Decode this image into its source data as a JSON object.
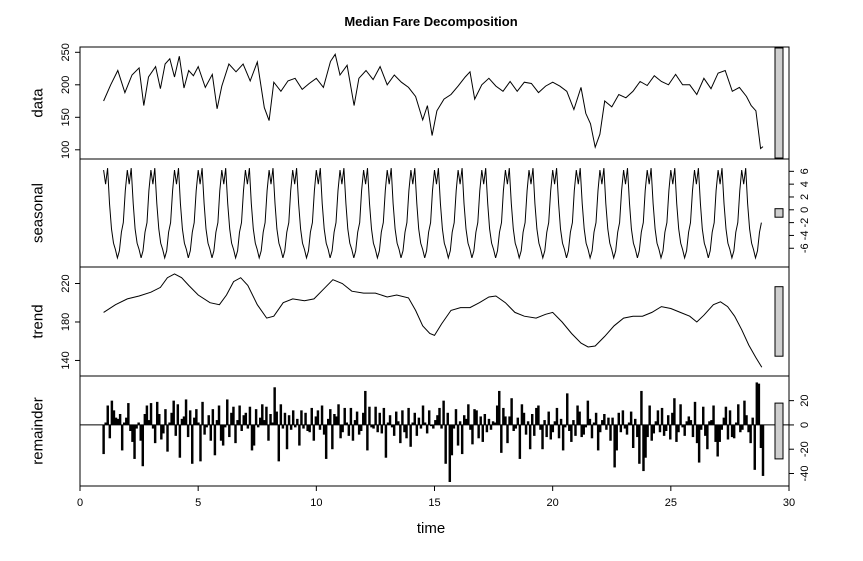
{
  "chart_data": {
    "type": "line",
    "title": "Median Fare Decomposition",
    "xlabel": "time",
    "xlim": [
      0,
      30
    ],
    "x_ticks": [
      0,
      5,
      10,
      15,
      20,
      25,
      30
    ],
    "x_tick_labels": [
      "0",
      "5",
      "10",
      "15",
      "20",
      "25",
      "30"
    ],
    "x_start": 1,
    "x_end": 28.9,
    "frequency": 12,
    "panels": [
      {
        "name": "data",
        "label": "data",
        "style": "line",
        "ylim": [
          92,
          252
        ],
        "y_ticks": [
          100,
          150,
          200,
          250
        ],
        "y_tick_labels": [
          "100",
          "150",
          "200",
          "250"
        ],
        "y_axis_side": "left",
        "range_bar_side": "right",
        "points": [
          [
            1,
            175
          ],
          [
            1.3,
            200
          ],
          [
            1.6,
            222
          ],
          [
            1.9,
            188
          ],
          [
            2.2,
            215
          ],
          [
            2.5,
            226
          ],
          [
            2.7,
            168
          ],
          [
            2.9,
            212
          ],
          [
            3.2,
            228
          ],
          [
            3.4,
            194
          ],
          [
            3.6,
            232
          ],
          [
            3.8,
            240
          ],
          [
            4.0,
            212
          ],
          [
            4.2,
            244
          ],
          [
            4.4,
            195
          ],
          [
            4.6,
            222
          ],
          [
            4.8,
            214
          ],
          [
            5.0,
            228
          ],
          [
            5.3,
            196
          ],
          [
            5.6,
            216
          ],
          [
            5.8,
            163
          ],
          [
            6.0,
            198
          ],
          [
            6.3,
            232
          ],
          [
            6.6,
            220
          ],
          [
            6.9,
            232
          ],
          [
            7.2,
            206
          ],
          [
            7.5,
            235
          ],
          [
            7.8,
            165
          ],
          [
            8.0,
            145
          ],
          [
            8.2,
            204
          ],
          [
            8.5,
            190
          ],
          [
            8.8,
            206
          ],
          [
            9.1,
            210
          ],
          [
            9.4,
            193
          ],
          [
            9.7,
            202
          ],
          [
            10.0,
            210
          ],
          [
            10.3,
            196
          ],
          [
            10.6,
            236
          ],
          [
            10.8,
            247
          ],
          [
            11.0,
            215
          ],
          [
            11.3,
            230
          ],
          [
            11.6,
            168
          ],
          [
            11.8,
            210
          ],
          [
            12.1,
            222
          ],
          [
            12.4,
            208
          ],
          [
            12.7,
            228
          ],
          [
            13.0,
            200
          ],
          [
            13.3,
            215
          ],
          [
            13.6,
            204
          ],
          [
            13.9,
            196
          ],
          [
            14.2,
            182
          ],
          [
            14.5,
            146
          ],
          [
            14.7,
            168
          ],
          [
            14.9,
            122
          ],
          [
            15.1,
            160
          ],
          [
            15.4,
            178
          ],
          [
            15.7,
            185
          ],
          [
            16.0,
            198
          ],
          [
            16.3,
            212
          ],
          [
            16.5,
            220
          ],
          [
            16.7,
            178
          ],
          [
            17.0,
            200
          ],
          [
            17.3,
            210
          ],
          [
            17.6,
            198
          ],
          [
            17.9,
            190
          ],
          [
            18.2,
            205
          ],
          [
            18.5,
            190
          ],
          [
            18.8,
            204
          ],
          [
            19.1,
            202
          ],
          [
            19.4,
            188
          ],
          [
            19.7,
            198
          ],
          [
            20.0,
            204
          ],
          [
            20.3,
            198
          ],
          [
            20.6,
            190
          ],
          [
            20.9,
            162
          ],
          [
            21.2,
            196
          ],
          [
            21.4,
            156
          ],
          [
            21.6,
            140
          ],
          [
            21.8,
            104
          ],
          [
            22.0,
            124
          ],
          [
            22.2,
            175
          ],
          [
            22.5,
            166
          ],
          [
            22.8,
            185
          ],
          [
            23.1,
            180
          ],
          [
            23.4,
            190
          ],
          [
            23.7,
            205
          ],
          [
            24.0,
            199
          ],
          [
            24.3,
            214
          ],
          [
            24.6,
            205
          ],
          [
            24.9,
            200
          ],
          [
            25.2,
            216
          ],
          [
            25.5,
            200
          ],
          [
            25.8,
            200
          ],
          [
            26.1,
            185
          ],
          [
            26.4,
            210
          ],
          [
            26.7,
            194
          ],
          [
            27.0,
            218
          ],
          [
            27.3,
            222
          ],
          [
            27.6,
            190
          ],
          [
            27.9,
            196
          ],
          [
            28.2,
            182
          ],
          [
            28.4,
            168
          ],
          [
            28.6,
            160
          ],
          [
            28.8,
            102
          ],
          [
            28.9,
            105
          ]
        ]
      },
      {
        "name": "seasonal",
        "label": "seasonal",
        "style": "line",
        "ylim": [
          -8.3,
          7.3
        ],
        "y_ticks": [
          -6,
          -4,
          -2,
          0,
          2,
          4,
          6
        ],
        "y_tick_labels": [
          "-6",
          "-4",
          "-2",
          "0",
          "2",
          "4",
          "6"
        ],
        "y_axis_side": "right",
        "range_bar_side": "right",
        "cycle_values": [
          6.2,
          4.0,
          6.5,
          1.0,
          -3.0,
          -5.2,
          -6.2,
          -7.5,
          -6.4,
          -3.5,
          -2.0,
          3.0
        ]
      },
      {
        "name": "trend",
        "label": "trend",
        "style": "line",
        "ylim": [
          128,
          233
        ],
        "y_ticks": [
          140,
          180,
          220
        ],
        "y_tick_labels": [
          "140",
          "180",
          "220"
        ],
        "y_axis_side": "left",
        "range_bar_side": "right",
        "points": [
          [
            1,
            190
          ],
          [
            1.5,
            198
          ],
          [
            2,
            204
          ],
          [
            2.5,
            207
          ],
          [
            3,
            211
          ],
          [
            3.4,
            216
          ],
          [
            3.7,
            226
          ],
          [
            4.0,
            230
          ],
          [
            4.3,
            226
          ],
          [
            4.6,
            218
          ],
          [
            5,
            208
          ],
          [
            5.5,
            200
          ],
          [
            5.9,
            198
          ],
          [
            6.2,
            208
          ],
          [
            6.5,
            222
          ],
          [
            6.8,
            226
          ],
          [
            7.1,
            218
          ],
          [
            7.5,
            198
          ],
          [
            7.9,
            184
          ],
          [
            8.2,
            186
          ],
          [
            8.6,
            200
          ],
          [
            9.0,
            204
          ],
          [
            9.5,
            202
          ],
          [
            9.9,
            204
          ],
          [
            10.3,
            214
          ],
          [
            10.7,
            224
          ],
          [
            11.1,
            220
          ],
          [
            11.5,
            212
          ],
          [
            12.0,
            210
          ],
          [
            12.5,
            210
          ],
          [
            13.0,
            206
          ],
          [
            13.4,
            208
          ],
          [
            13.9,
            205
          ],
          [
            14.2,
            192
          ],
          [
            14.5,
            176
          ],
          [
            14.8,
            168
          ],
          [
            15.0,
            166
          ],
          [
            15.3,
            178
          ],
          [
            15.7,
            192
          ],
          [
            16.1,
            195
          ],
          [
            16.5,
            195
          ],
          [
            16.9,
            200
          ],
          [
            17.3,
            206
          ],
          [
            17.6,
            207
          ],
          [
            18.0,
            200
          ],
          [
            18.4,
            190
          ],
          [
            18.8,
            186
          ],
          [
            19.3,
            184
          ],
          [
            19.7,
            188
          ],
          [
            20.0,
            190
          ],
          [
            20.4,
            180
          ],
          [
            20.8,
            168
          ],
          [
            21.2,
            158
          ],
          [
            21.5,
            154
          ],
          [
            21.8,
            155
          ],
          [
            22.2,
            165
          ],
          [
            22.6,
            176
          ],
          [
            23.0,
            184
          ],
          [
            23.4,
            186
          ],
          [
            23.8,
            186
          ],
          [
            24.2,
            190
          ],
          [
            24.6,
            196
          ],
          [
            25.0,
            194
          ],
          [
            25.4,
            190
          ],
          [
            25.8,
            186
          ],
          [
            26.1,
            180
          ],
          [
            26.4,
            187
          ],
          [
            26.8,
            198
          ],
          [
            27.1,
            201
          ],
          [
            27.4,
            196
          ],
          [
            27.7,
            186
          ],
          [
            28.0,
            172
          ],
          [
            28.3,
            156
          ],
          [
            28.6,
            143
          ],
          [
            28.85,
            133
          ]
        ]
      },
      {
        "name": "remainder",
        "label": "remainder",
        "style": "bars",
        "ylim": [
          -47,
          37
        ],
        "y_ticks": [
          -40,
          -20,
          0,
          20
        ],
        "y_tick_labels": [
          "-40",
          "-20",
          "0",
          "20"
        ],
        "y_axis_side": "right",
        "range_bar_side": "right",
        "baseline": 0,
        "values": [
          -24,
          2,
          16,
          -11,
          20,
          12,
          6,
          5,
          9,
          -21,
          2,
          6,
          18,
          -5,
          -14,
          -28,
          -3,
          2,
          -13,
          -34,
          9,
          16,
          4,
          18,
          -3,
          -15,
          19,
          9,
          -12,
          -7,
          13,
          -22,
          2,
          10,
          20,
          -9,
          17,
          -27,
          5,
          7,
          21,
          -10,
          12,
          -32,
          6,
          13,
          2,
          -30,
          19,
          -8,
          -2,
          8,
          -13,
          13,
          -25,
          4,
          16,
          -13,
          -17,
          -2,
          21,
          -10,
          10,
          15,
          -15,
          4,
          16,
          -5,
          8,
          10,
          -3,
          15,
          -21,
          -17,
          13,
          -2,
          6,
          17,
          4,
          15,
          -13,
          9,
          2,
          31,
          11,
          -30,
          17,
          -3,
          10,
          -20,
          8,
          -4,
          12,
          -2,
          5,
          -17,
          12,
          -3,
          10,
          -5,
          -6,
          14,
          -13,
          7,
          12,
          -4,
          16,
          -8,
          -28,
          5,
          13,
          -20,
          9,
          7,
          17,
          -11,
          -6,
          14,
          2,
          -9,
          14,
          -13,
          4,
          11,
          -8,
          -5,
          10,
          28,
          -21,
          15,
          -2,
          -3,
          15,
          -6,
          10,
          -7,
          14,
          -27,
          2,
          8,
          -2,
          -9,
          11,
          3,
          -15,
          12,
          -6,
          -11,
          14,
          -18,
          2,
          10,
          -9,
          6,
          -3,
          16,
          2,
          -7,
          12,
          -1,
          -3,
          4,
          8,
          14,
          -3,
          20,
          -32,
          10,
          -47,
          -25,
          -3,
          13,
          -17,
          3,
          -24,
          8,
          5,
          17,
          -4,
          -16,
          13,
          12,
          -11,
          7,
          -14,
          9,
          -6,
          5,
          -4,
          3,
          2,
          16,
          28,
          -23,
          14,
          7,
          -15,
          7,
          22,
          -5,
          -3,
          6,
          -28,
          17,
          10,
          -8,
          3,
          -20,
          9,
          -9,
          14,
          16,
          -4,
          -20,
          4,
          -10,
          11,
          -12,
          -6,
          3,
          14,
          -11,
          5,
          -21,
          -2,
          26,
          -5,
          -14,
          4,
          -9,
          16,
          11,
          -10,
          -8,
          -2,
          20,
          5,
          -11,
          2,
          10,
          -21,
          -6,
          4,
          9,
          -4,
          6,
          -13,
          6,
          -35,
          -21,
          10,
          -6,
          12,
          -3,
          -8,
          2,
          11,
          -19,
          5,
          -10,
          -32,
          28,
          -38,
          -27,
          -10,
          16,
          -13,
          -7,
          3,
          12,
          -6,
          14,
          -9,
          -5,
          8,
          -12,
          10,
          22,
          -14,
          -6,
          17,
          -2,
          -9,
          3,
          7,
          4,
          -10,
          19,
          -15,
          -31,
          -4,
          15,
          -9,
          -20,
          3,
          4,
          16,
          -14,
          -26,
          -14,
          -4,
          6,
          15,
          -12,
          12,
          -10,
          -11,
          2,
          17,
          -6,
          -4,
          20,
          8,
          -6,
          -15,
          6,
          -37,
          35,
          34,
          -19,
          -42
        ]
      }
    ]
  }
}
